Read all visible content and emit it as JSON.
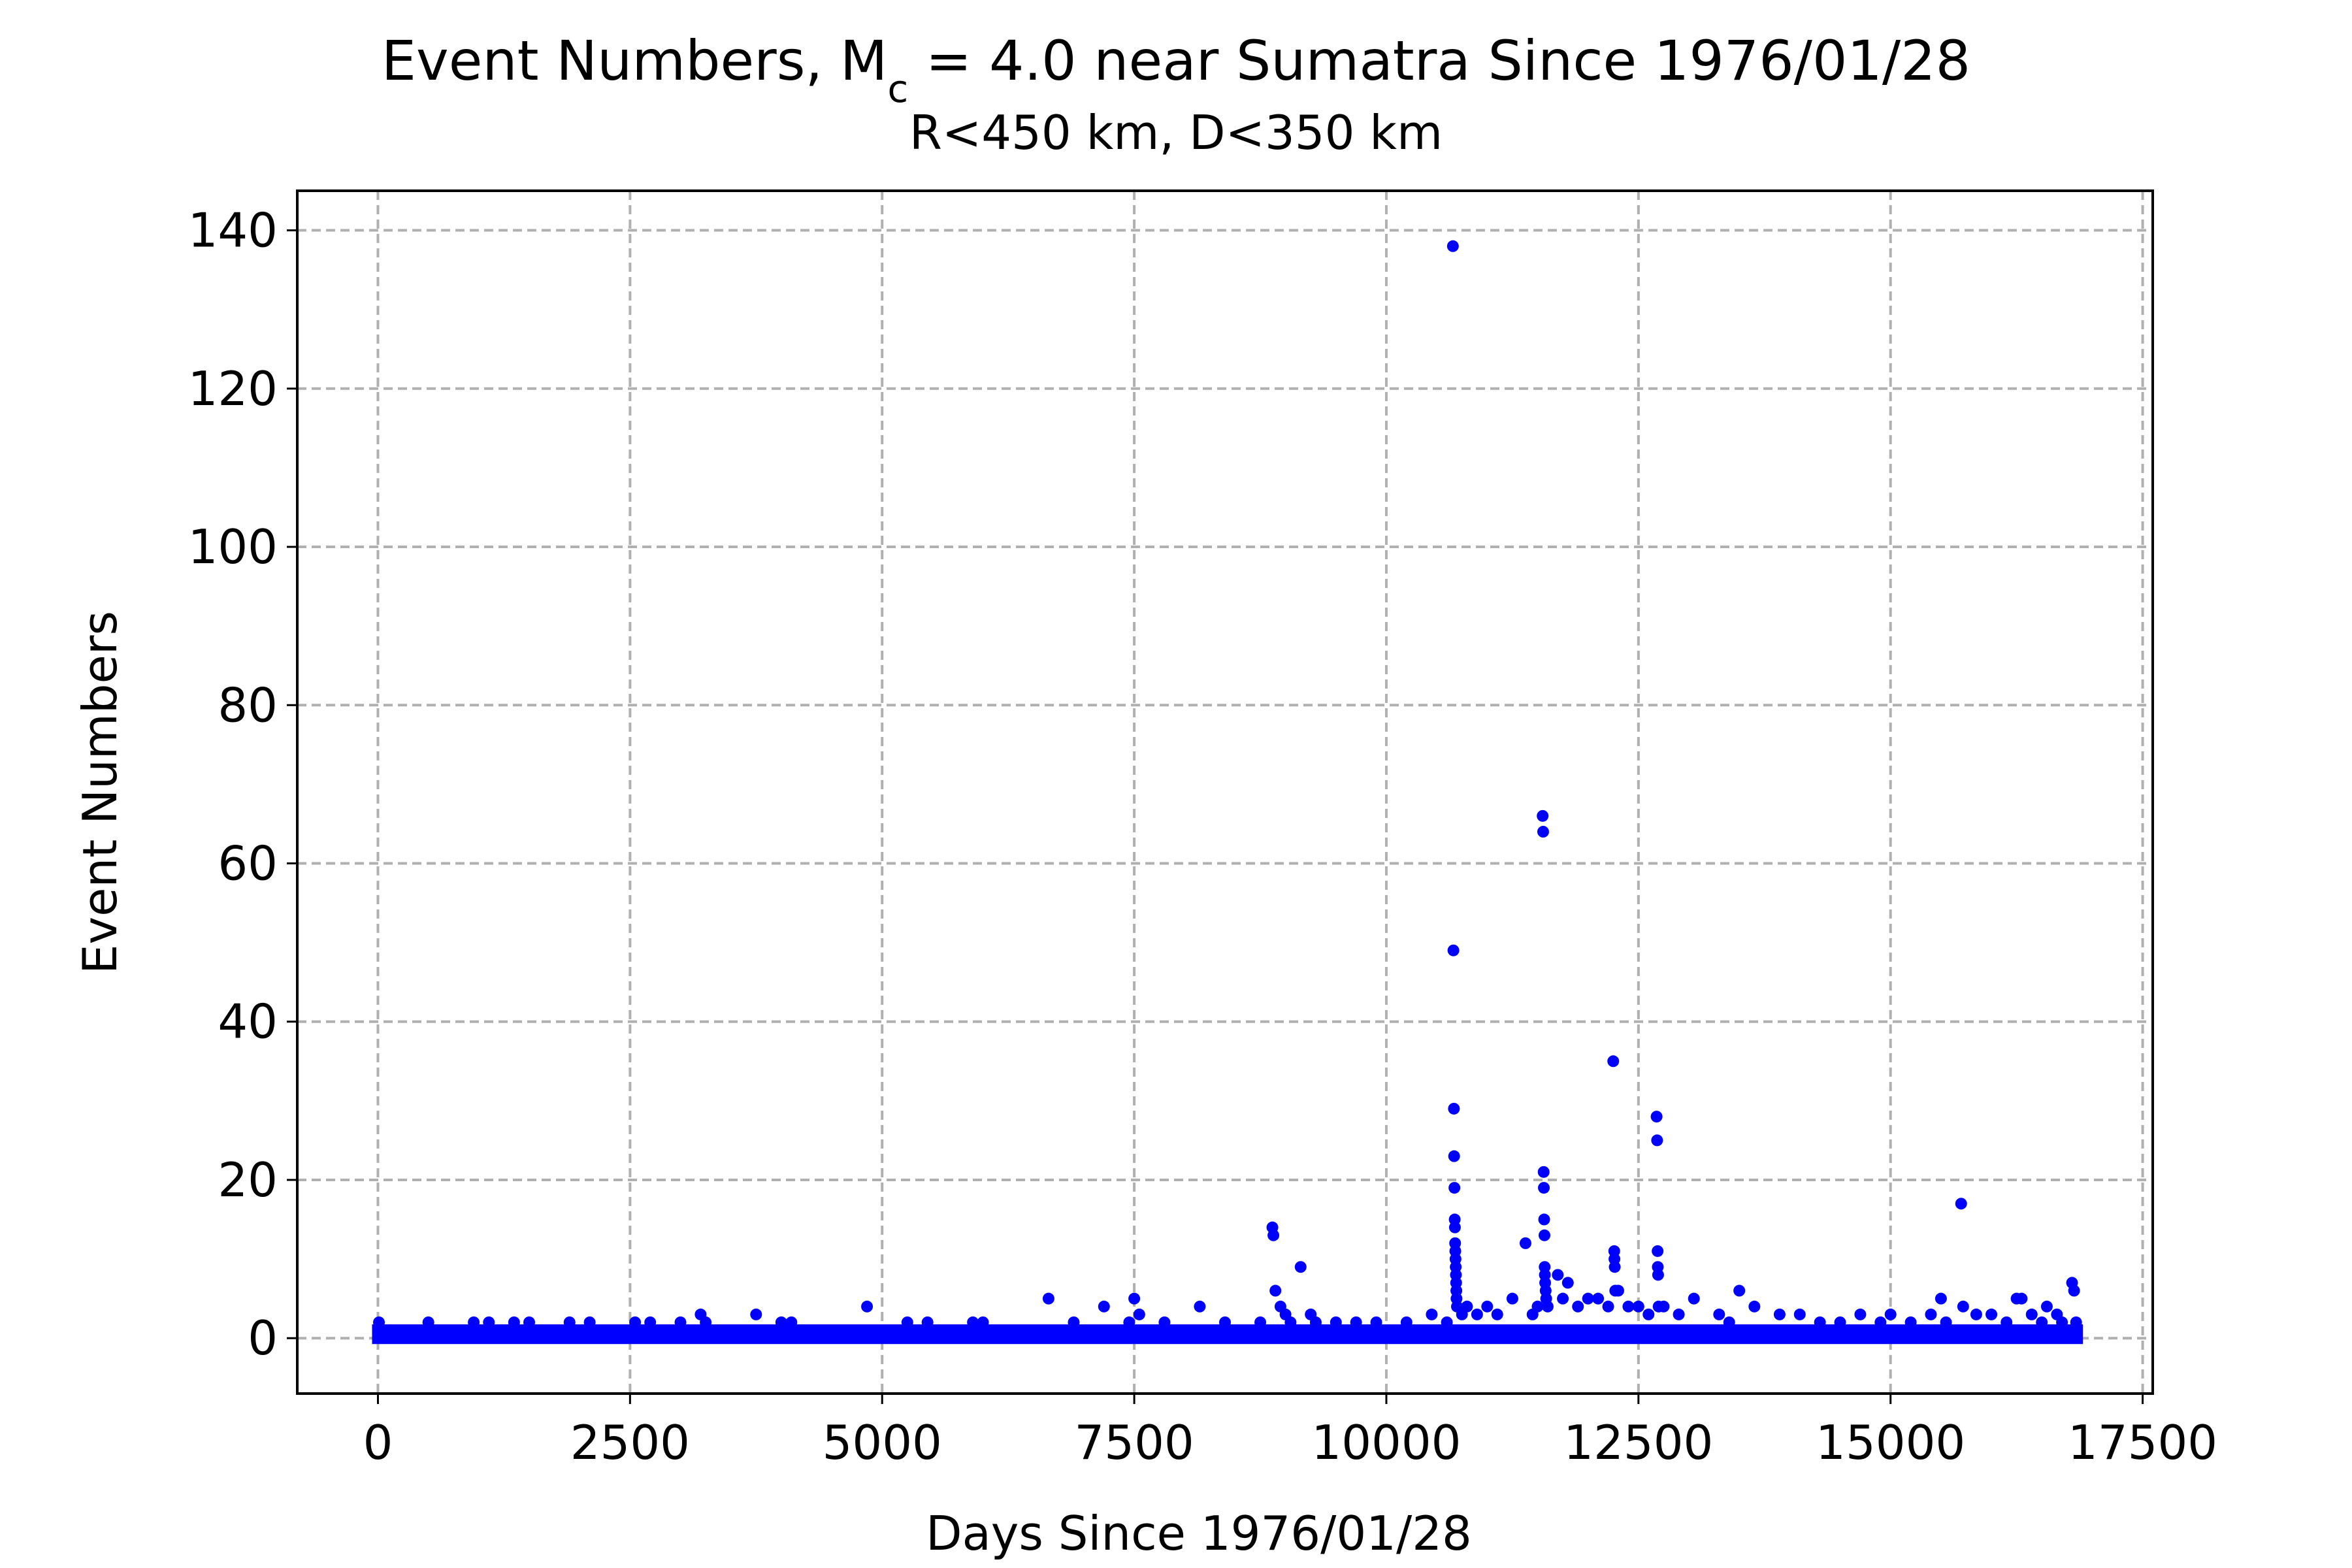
{
  "chart_data": {
    "type": "scatter",
    "title_prefix": "Event Numbers, M",
    "title_subscript": "c",
    "title_suffix": " = 4.0 near Sumatra Since 1976/01/28",
    "subtitle": "R<450 km, D<350 km",
    "xlabel": "Days Since 1976/01/28",
    "ylabel": "Event Numbers",
    "xlim": [
      -800,
      17600
    ],
    "ylim": [
      -7,
      145
    ],
    "xticks": [
      0,
      2500,
      5000,
      7500,
      10000,
      12500,
      15000,
      17500
    ],
    "yticks": [
      0,
      20,
      40,
      60,
      80,
      100,
      120,
      140
    ],
    "grid": true,
    "marker_color": "#0000ff",
    "baseline": {
      "x_start": 0,
      "x_end": 16850,
      "y_min": 0,
      "y_max": 1
    },
    "points": [
      [
        10,
        2
      ],
      [
        120,
        1
      ],
      [
        500,
        2
      ],
      [
        950,
        2
      ],
      [
        1100,
        2
      ],
      [
        1350,
        2
      ],
      [
        1500,
        2
      ],
      [
        1900,
        2
      ],
      [
        2100,
        2
      ],
      [
        2550,
        2
      ],
      [
        2700,
        2
      ],
      [
        3000,
        2
      ],
      [
        3200,
        3
      ],
      [
        3250,
        2
      ],
      [
        3750,
        3
      ],
      [
        4000,
        2
      ],
      [
        4100,
        2
      ],
      [
        4850,
        4
      ],
      [
        5250,
        2
      ],
      [
        5450,
        2
      ],
      [
        5900,
        2
      ],
      [
        6000,
        2
      ],
      [
        6650,
        5
      ],
      [
        6900,
        2
      ],
      [
        7200,
        4
      ],
      [
        7450,
        2
      ],
      [
        7500,
        5
      ],
      [
        7550,
        3
      ],
      [
        7800,
        2
      ],
      [
        8150,
        4
      ],
      [
        8400,
        2
      ],
      [
        8750,
        2
      ],
      [
        8870,
        14
      ],
      [
        8880,
        13
      ],
      [
        8900,
        6
      ],
      [
        8950,
        4
      ],
      [
        9000,
        3
      ],
      [
        9050,
        2
      ],
      [
        9150,
        9
      ],
      [
        9250,
        3
      ],
      [
        9300,
        2
      ],
      [
        9500,
        2
      ],
      [
        9700,
        2
      ],
      [
        9900,
        2
      ],
      [
        10200,
        2
      ],
      [
        10450,
        3
      ],
      [
        10600,
        2
      ],
      [
        10660,
        138
      ],
      [
        10665,
        49
      ],
      [
        10670,
        29
      ],
      [
        10672,
        23
      ],
      [
        10675,
        19
      ],
      [
        10678,
        15
      ],
      [
        10680,
        14
      ],
      [
        10682,
        12
      ],
      [
        10684,
        11
      ],
      [
        10686,
        10
      ],
      [
        10688,
        9
      ],
      [
        10690,
        8
      ],
      [
        10692,
        7
      ],
      [
        10694,
        6
      ],
      [
        10696,
        5
      ],
      [
        10700,
        4
      ],
      [
        10750,
        3
      ],
      [
        10800,
        4
      ],
      [
        10900,
        3
      ],
      [
        11000,
        4
      ],
      [
        11100,
        3
      ],
      [
        11250,
        5
      ],
      [
        11380,
        12
      ],
      [
        11450,
        3
      ],
      [
        11500,
        4
      ],
      [
        11550,
        66
      ],
      [
        11555,
        64
      ],
      [
        11560,
        21
      ],
      [
        11562,
        19
      ],
      [
        11565,
        15
      ],
      [
        11568,
        13
      ],
      [
        11570,
        9
      ],
      [
        11572,
        8
      ],
      [
        11575,
        7
      ],
      [
        11580,
        6
      ],
      [
        11585,
        5
      ],
      [
        11600,
        4
      ],
      [
        11700,
        8
      ],
      [
        11750,
        5
      ],
      [
        11800,
        7
      ],
      [
        11900,
        4
      ],
      [
        12000,
        5
      ],
      [
        12100,
        5
      ],
      [
        12200,
        4
      ],
      [
        12250,
        35
      ],
      [
        12260,
        11
      ],
      [
        12262,
        10
      ],
      [
        12265,
        9
      ],
      [
        12270,
        6
      ],
      [
        12300,
        6
      ],
      [
        12400,
        4
      ],
      [
        12500,
        4
      ],
      [
        12600,
        3
      ],
      [
        12680,
        28
      ],
      [
        12685,
        25
      ],
      [
        12690,
        11
      ],
      [
        12692,
        9
      ],
      [
        12695,
        8
      ],
      [
        12700,
        4
      ],
      [
        12750,
        4
      ],
      [
        12900,
        3
      ],
      [
        13050,
        5
      ],
      [
        13300,
        3
      ],
      [
        13400,
        2
      ],
      [
        13500,
        6
      ],
      [
        13650,
        4
      ],
      [
        13900,
        3
      ],
      [
        14100,
        3
      ],
      [
        14300,
        2
      ],
      [
        14500,
        2
      ],
      [
        14700,
        3
      ],
      [
        14900,
        2
      ],
      [
        15000,
        3
      ],
      [
        15200,
        2
      ],
      [
        15400,
        3
      ],
      [
        15500,
        5
      ],
      [
        15550,
        2
      ],
      [
        15700,
        17
      ],
      [
        15720,
        4
      ],
      [
        15850,
        3
      ],
      [
        16000,
        3
      ],
      [
        16150,
        2
      ],
      [
        16250,
        5
      ],
      [
        16300,
        5
      ],
      [
        16400,
        3
      ],
      [
        16500,
        2
      ],
      [
        16550,
        4
      ],
      [
        16650,
        3
      ],
      [
        16700,
        2
      ],
      [
        16800,
        7
      ],
      [
        16820,
        6
      ],
      [
        16840,
        2
      ]
    ]
  }
}
